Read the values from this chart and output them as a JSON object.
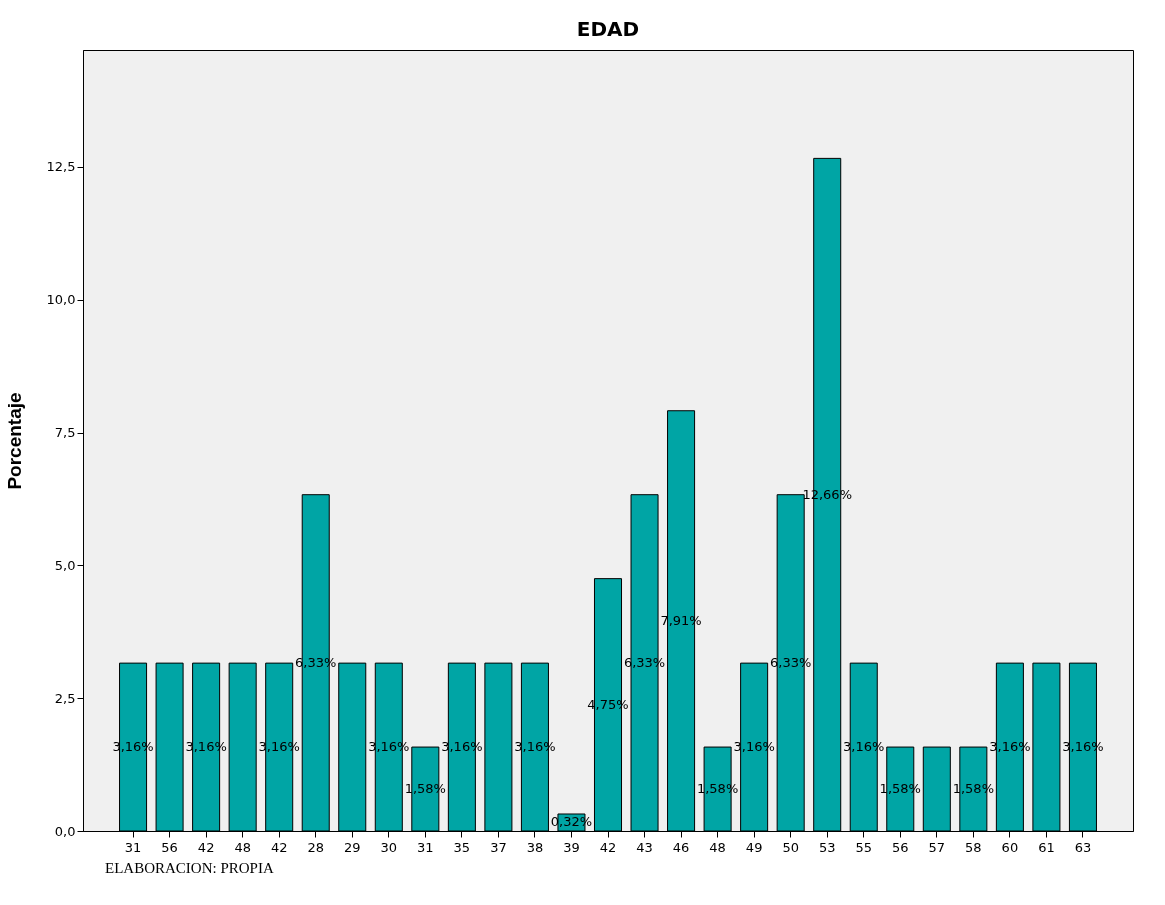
{
  "chart_data": {
    "type": "bar",
    "title": "EDAD",
    "ylabel": "Porcentaje",
    "categories": [
      "31",
      "56",
      "42",
      "48",
      "42",
      "28",
      "29",
      "30",
      "31",
      "35",
      "37",
      "38",
      "39",
      "42",
      "43",
      "46",
      "48",
      "49",
      "50",
      "53",
      "55",
      "56",
      "57",
      "58",
      "60",
      "61",
      "63"
    ],
    "values": [
      3.16,
      3.16,
      3.16,
      3.16,
      3.16,
      6.33,
      3.16,
      3.16,
      1.58,
      3.16,
      3.16,
      3.16,
      0.32,
      4.75,
      6.33,
      7.91,
      1.58,
      3.16,
      6.33,
      12.66,
      3.16,
      1.58,
      1.58,
      1.58,
      3.16,
      3.16,
      3.16
    ],
    "value_labels": [
      "3,16%",
      null,
      "3,16%",
      null,
      "3,16%",
      "6,33%",
      null,
      "3,16%",
      "1,58%",
      "3,16%",
      null,
      "3,16%",
      "0,32%",
      "4,75%",
      "6,33%",
      "7,91%",
      "1,58%",
      "3,16%",
      "6,33%",
      "12,66%",
      "3,16%",
      "1,58%",
      null,
      "1,58%",
      "3,16%",
      null,
      "3,16%"
    ],
    "color": "#00a5a5",
    "ylim": [
      0,
      14.7
    ],
    "yticks": [
      {
        "value": 0,
        "label": "0,0"
      },
      {
        "value": 2.5,
        "label": "2,5"
      },
      {
        "value": 5,
        "label": "5,0"
      },
      {
        "value": 7.5,
        "label": "7,5"
      },
      {
        "value": 10,
        "label": "10,0"
      },
      {
        "value": 12.5,
        "label": "12,5"
      }
    ],
    "grid": false,
    "annotations": [
      "ELABORACION: PROPIA"
    ]
  }
}
